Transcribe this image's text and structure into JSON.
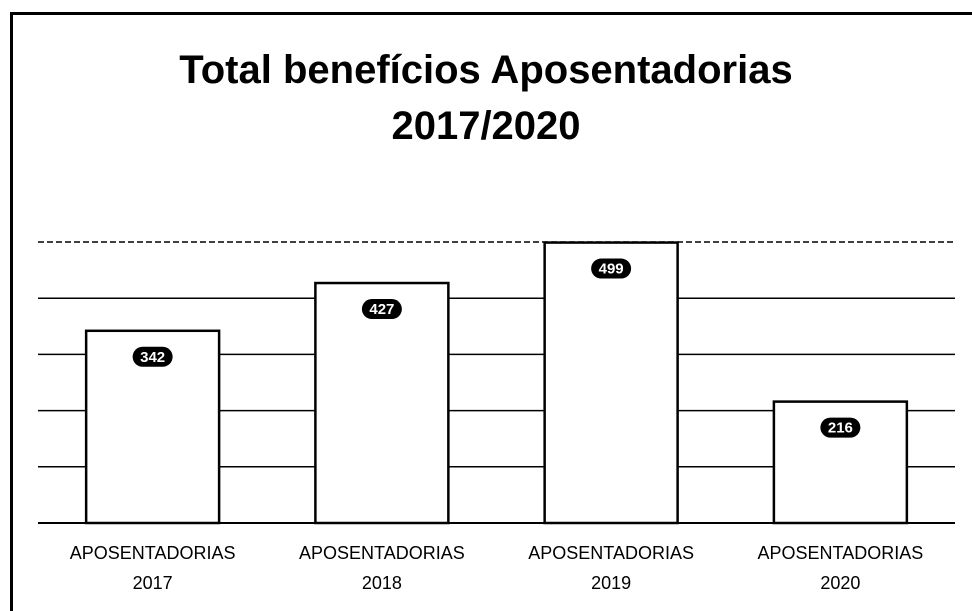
{
  "chart_data": {
    "type": "bar",
    "title": "Total benefícios Aposentadorias 2017/2020",
    "categories": [
      "APOSENTADORIAS 2017",
      "APOSENTADORIAS 2018",
      "APOSENTADORIAS 2019",
      "APOSENTADORIAS 2020"
    ],
    "values": [
      342,
      427,
      499,
      216
    ],
    "color": "#ffffff",
    "ylim": [
      0,
      500
    ],
    "yticks": [
      0,
      100,
      200,
      300,
      400,
      500
    ],
    "grid": true
  }
}
